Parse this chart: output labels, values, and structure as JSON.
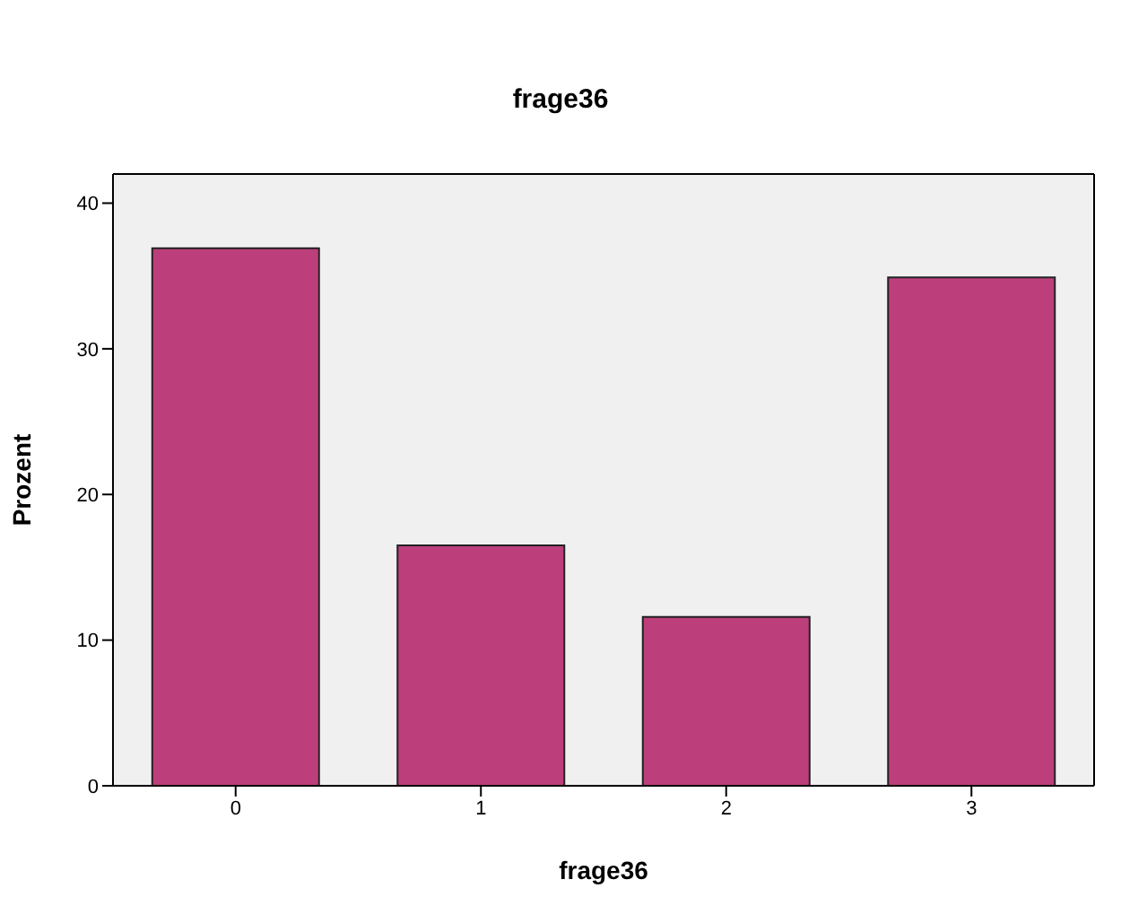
{
  "chart_data": {
    "type": "bar",
    "title": "frage36",
    "xlabel": "frage36",
    "ylabel": "Prozent",
    "categories": [
      "0",
      "1",
      "2",
      "3"
    ],
    "values": [
      36.9,
      16.5,
      11.6,
      34.9
    ],
    "color": "#bc3f7c",
    "ylim": [
      0,
      42
    ],
    "yticks": [
      0,
      10,
      20,
      30,
      40
    ],
    "grid": false,
    "legend": false
  }
}
